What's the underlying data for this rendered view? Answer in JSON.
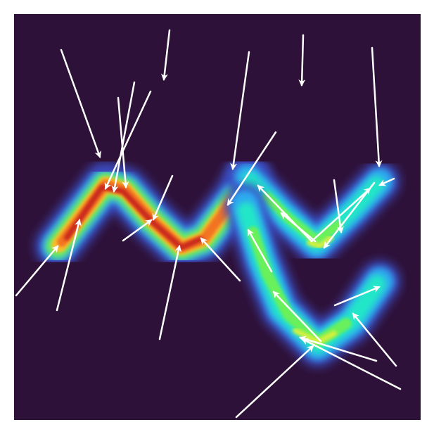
{
  "figure": {
    "background_color": "#ffffff",
    "field_color": "#2e1139",
    "arrow_color": "#ffffff",
    "colormap": "turbo",
    "colormap_stops": [
      "#2e1139",
      "#3b4cc0",
      "#2fa8f0",
      "#22e6c8",
      "#6af05a",
      "#d6f03c",
      "#f8c02c",
      "#f27322",
      "#c8271a",
      "#8a0b0b"
    ]
  }
}
